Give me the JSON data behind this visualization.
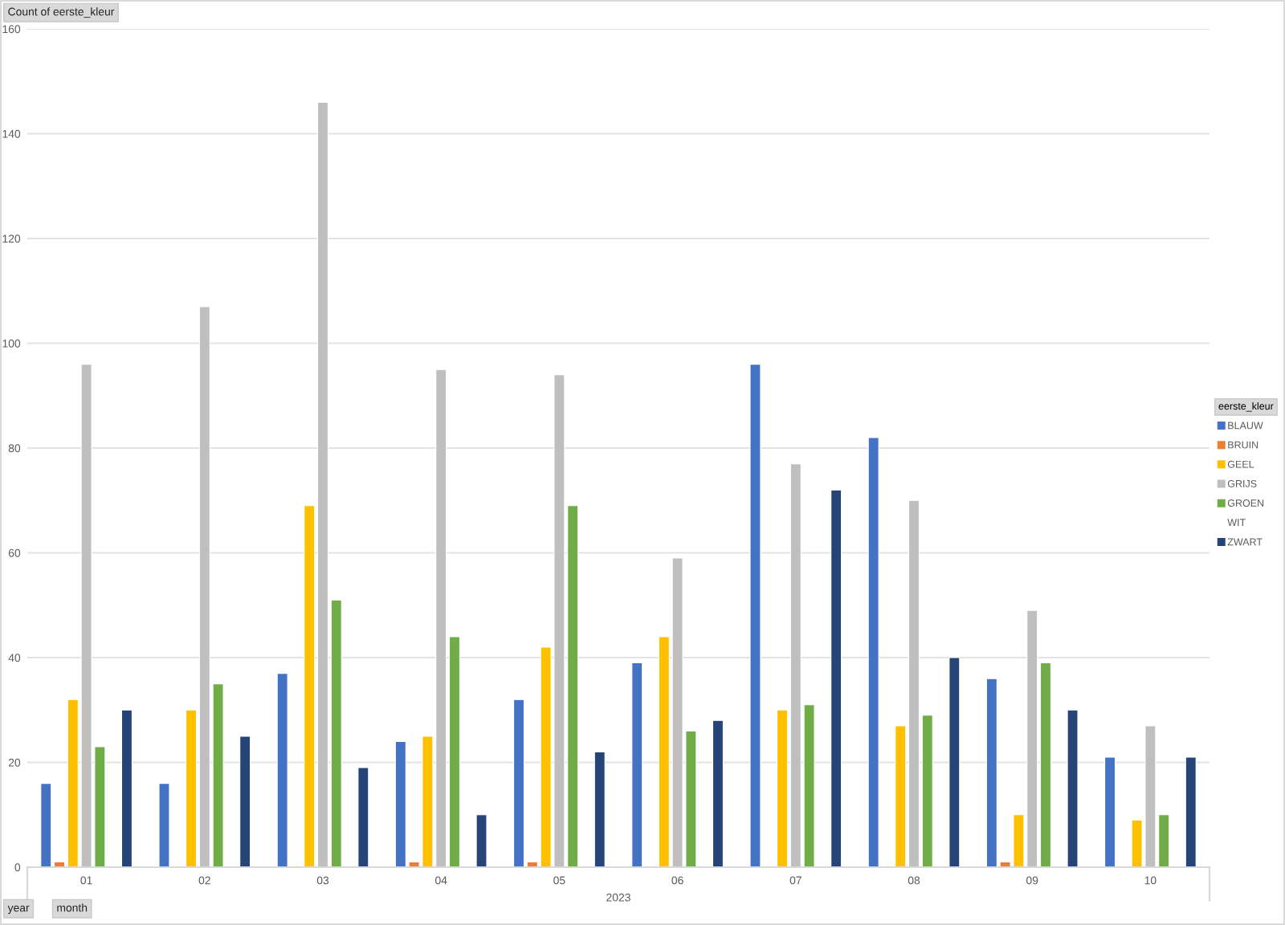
{
  "chart_data": {
    "type": "bar",
    "title": "Count of eerste_kleur",
    "xlabel": "2023",
    "categories": [
      "01",
      "02",
      "03",
      "04",
      "05",
      "06",
      "07",
      "08",
      "09",
      "10"
    ],
    "series": [
      {
        "name": "BLAUW",
        "color": "#4472c4",
        "values": [
          16,
          16,
          37,
          24,
          32,
          39,
          96,
          82,
          36,
          21
        ]
      },
      {
        "name": "BRUIN",
        "color": "#ed7d31",
        "values": [
          1,
          null,
          null,
          1,
          1,
          null,
          null,
          null,
          1,
          null
        ]
      },
      {
        "name": "GEEL",
        "color": "#ffc000",
        "values": [
          32,
          30,
          69,
          25,
          42,
          44,
          30,
          27,
          10,
          9
        ]
      },
      {
        "name": "GRIJS",
        "color": "#bfbfbf",
        "values": [
          96,
          107,
          146,
          95,
          94,
          59,
          77,
          70,
          49,
          27
        ]
      },
      {
        "name": "GROEN",
        "color": "#70ad47",
        "values": [
          23,
          35,
          51,
          44,
          69,
          26,
          31,
          29,
          39,
          10
        ]
      },
      {
        "name": "WIT",
        "values": [
          null,
          null,
          null,
          null,
          null,
          null,
          null,
          null,
          null,
          null
        ]
      },
      {
        "name": "ZWART",
        "color": "#264478",
        "values": [
          30,
          25,
          19,
          10,
          22,
          28,
          72,
          40,
          30,
          21
        ]
      }
    ],
    "ylim": [
      0,
      160
    ],
    "yticks": [
      0,
      20,
      40,
      60,
      80,
      100,
      120,
      140,
      160
    ],
    "grid": "y",
    "legend": "right",
    "legend_title": "eerste_kleur",
    "annotations": [
      "year",
      "month"
    ]
  }
}
